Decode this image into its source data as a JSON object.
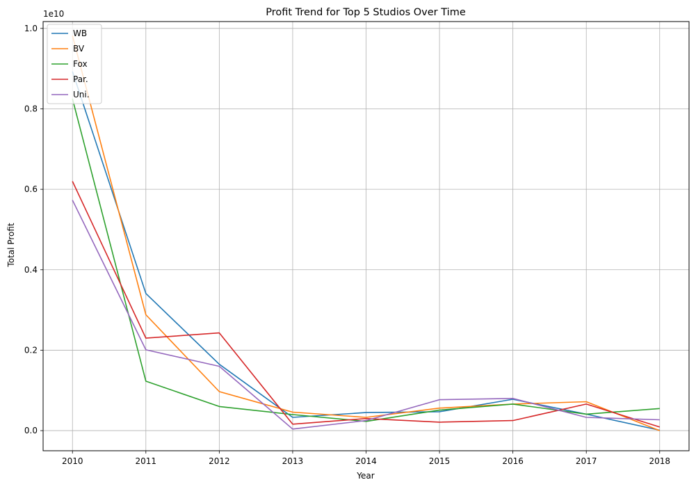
{
  "chart_data": {
    "type": "line",
    "title": "Profit Trend for Top 5 Studios Over Time",
    "xlabel": "Year",
    "ylabel": "Total Profit",
    "y_offset_label": "1e10",
    "x": [
      2010,
      2011,
      2012,
      2013,
      2014,
      2015,
      2016,
      2017,
      2018
    ],
    "x_tick_labels": [
      "2010",
      "2011",
      "2012",
      "2013",
      "2014",
      "2015",
      "2016",
      "2017",
      "2018"
    ],
    "y_ticks": [
      0.0,
      0.2,
      0.4,
      0.6,
      0.8,
      1.0
    ],
    "y_tick_labels": [
      "0.0",
      "0.2",
      "0.4",
      "0.6",
      "0.8",
      "1.0"
    ],
    "y_scale": 10000000000,
    "xlim": [
      2009.6,
      2018.4
    ],
    "ylim": [
      -0.05,
      1.017
    ],
    "grid": true,
    "legend_position": "top-left",
    "series": [
      {
        "name": "WB",
        "color": "#1f77b4",
        "values": [
          0.893,
          0.341,
          0.165,
          0.033,
          0.045,
          0.047,
          0.078,
          0.041,
          0.001
        ]
      },
      {
        "name": "BV",
        "color": "#ff7f0e",
        "values": [
          0.982,
          0.288,
          0.097,
          0.046,
          0.033,
          0.056,
          0.066,
          0.072,
          0.0
        ]
      },
      {
        "name": "Fox",
        "color": "#2ca02c",
        "values": [
          0.825,
          0.123,
          0.06,
          0.04,
          0.023,
          0.051,
          0.066,
          0.041,
          0.055
        ]
      },
      {
        "name": "Par.",
        "color": "#d62728",
        "values": [
          0.62,
          0.23,
          0.243,
          0.016,
          0.03,
          0.021,
          0.025,
          0.066,
          0.009
        ]
      },
      {
        "name": "Uni.",
        "color": "#9467bd",
        "values": [
          0.573,
          0.201,
          0.16,
          0.004,
          0.025,
          0.077,
          0.08,
          0.033,
          0.027
        ]
      }
    ]
  }
}
